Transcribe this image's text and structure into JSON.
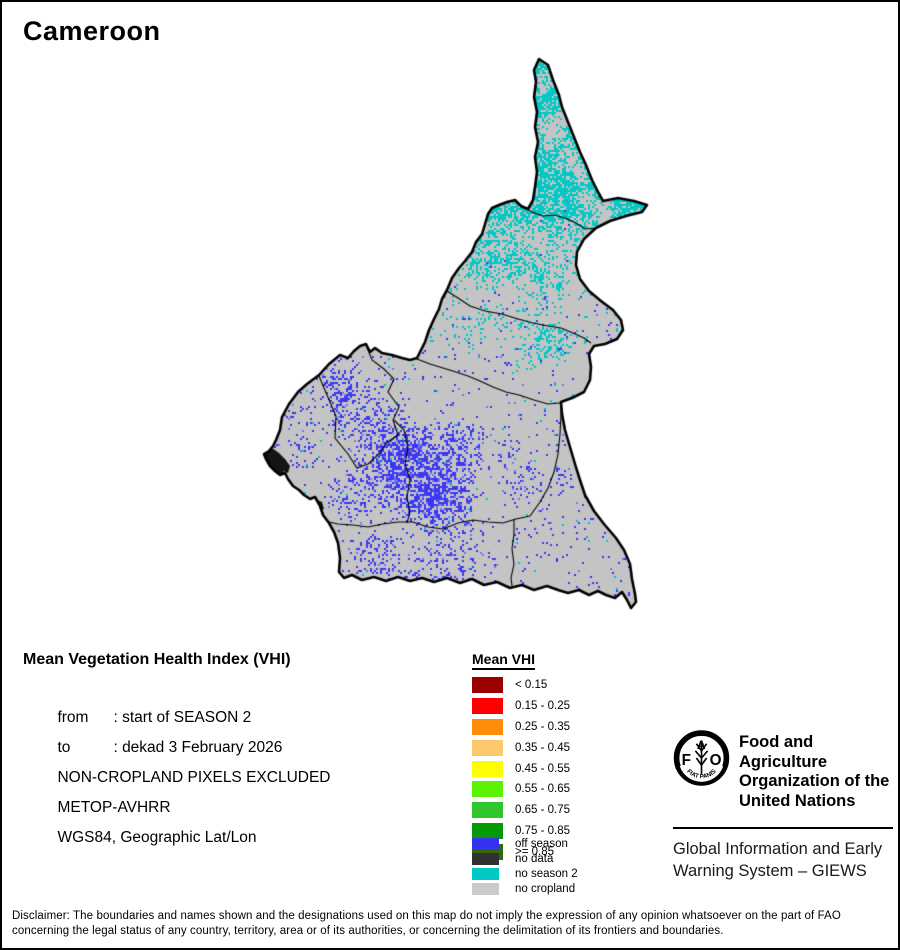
{
  "page": {
    "title": "Cameroon"
  },
  "info": {
    "heading": "Mean Vegetation Health Index (VHI)",
    "rows": [
      {
        "label": "from",
        "text": ": start of SEASON 2"
      },
      {
        "label": "to",
        "text": ": dekad 3 February 2026"
      },
      {
        "label": "",
        "text": "NON-CROPLAND PIXELS EXCLUDED"
      },
      {
        "label": "",
        "text": "METOP-AVHRR"
      },
      {
        "label": "",
        "text": "WGS84, Geographic Lat/Lon"
      }
    ]
  },
  "vhi_legend": {
    "title": "Mean VHI",
    "entries": [
      {
        "label": "< 0.15",
        "color": "#9a0000"
      },
      {
        "label": "0.15 - 0.25",
        "color": "#fe0000"
      },
      {
        "label": "0.25 - 0.35",
        "color": "#ff8c0a"
      },
      {
        "label": "0.35 - 0.45",
        "color": "#fbc96b"
      },
      {
        "label": "0.45 - 0.55",
        "color": "#fdfe02"
      },
      {
        "label": "0.55 - 0.65",
        "color": "#59f303"
      },
      {
        "label": "0.65 - 0.75",
        "color": "#2ec72e"
      },
      {
        "label": "0.75 - 0.85",
        "color": "#069906"
      },
      {
        "label": ">= 0.85",
        "color": "#2f6a0b"
      }
    ]
  },
  "season_legend": {
    "entries": [
      {
        "label": "off season",
        "color": "#3533f0"
      },
      {
        "label": "no data",
        "color": "#303030"
      },
      {
        "label": "no season 2",
        "color": "#00c8c4"
      },
      {
        "label": "no cropland",
        "color": "#cbcbcb"
      }
    ]
  },
  "fao": {
    "logo": {
      "letters": [
        "F",
        "A",
        "O"
      ],
      "motto": "FIAT  PANIS"
    },
    "org_lines": [
      "Food and Agriculture",
      "Organization of the",
      "United Nations"
    ],
    "giews_lines": [
      "Global Information and Early",
      "Warning System – GIEWS"
    ]
  },
  "disclaimer": {
    "lines": [
      "Disclaimer: The boundaries and names shown and the designations used on this map do not imply the expression of any opinion whatsoever on the part of FAO",
      "concerning the legal status of any country, territory, area or of its authorities, or concerning the delimitation of its frontiers and boundaries."
    ]
  },
  "map": {
    "colors": {
      "background": "#ffffff",
      "no_cropland": "#c4c4c4",
      "no_season2": "#00c8c4",
      "off_season": "#3b38f2",
      "off_season_light": "#7672fa",
      "no_data": "#151515",
      "border": "#000000"
    }
  }
}
